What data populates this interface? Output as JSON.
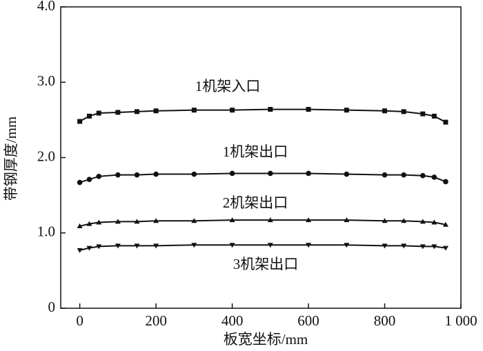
{
  "chart_data": {
    "type": "line",
    "x_label": "板宽坐标/mm",
    "y_label": "带钢厚度/mm",
    "x": [
      0,
      25,
      50,
      100,
      150,
      200,
      300,
      400,
      500,
      600,
      700,
      800,
      850,
      900,
      930,
      960
    ],
    "series": [
      {
        "name": "1机架入口",
        "color": "#111111",
        "marker": "square",
        "values": [
          2.48,
          2.55,
          2.59,
          2.6,
          2.61,
          2.62,
          2.63,
          2.63,
          2.64,
          2.64,
          2.63,
          2.62,
          2.61,
          2.58,
          2.55,
          2.47
        ]
      },
      {
        "name": "1机架出口",
        "color": "#111111",
        "marker": "circle",
        "values": [
          1.67,
          1.71,
          1.75,
          1.77,
          1.77,
          1.78,
          1.78,
          1.79,
          1.79,
          1.79,
          1.78,
          1.77,
          1.77,
          1.76,
          1.74,
          1.68
        ]
      },
      {
        "name": "2机架出口",
        "color": "#111111",
        "marker": "triangle-up",
        "values": [
          1.09,
          1.12,
          1.14,
          1.15,
          1.15,
          1.16,
          1.16,
          1.17,
          1.17,
          1.17,
          1.17,
          1.16,
          1.16,
          1.15,
          1.14,
          1.11
        ]
      },
      {
        "name": "3机架出口",
        "color": "#111111",
        "marker": "triangle-down",
        "values": [
          0.77,
          0.8,
          0.82,
          0.83,
          0.83,
          0.83,
          0.84,
          0.84,
          0.84,
          0.84,
          0.84,
          0.83,
          0.83,
          0.82,
          0.82,
          0.8
        ]
      }
    ],
    "xlim": [
      -50,
      1000
    ],
    "xticks": [
      0,
      200,
      400,
      600,
      800,
      {
        "value": 1000,
        "label": "1 000"
      }
    ],
    "ylim": [
      0,
      4
    ],
    "yticks": [
      0,
      {
        "value": 1,
        "label": "1.0"
      },
      {
        "value": 2,
        "label": "2.0"
      },
      {
        "value": 3,
        "label": "3.0"
      },
      {
        "value": 4,
        "label": "4.0"
      }
    ]
  }
}
